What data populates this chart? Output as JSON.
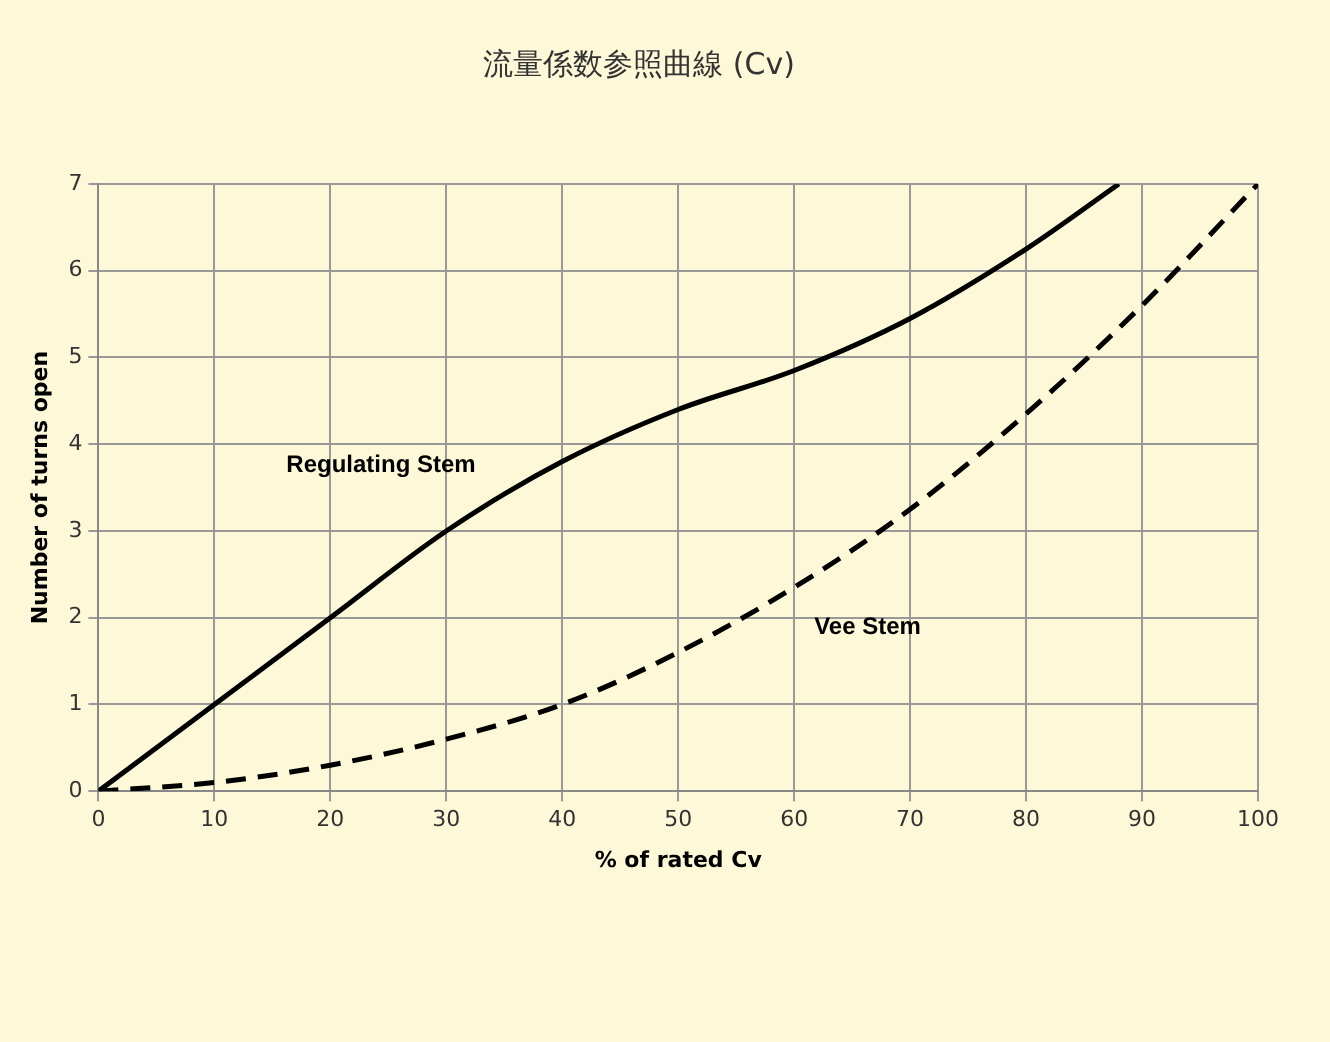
{
  "chart_data": {
    "type": "line",
    "title": "流量係数参照曲線 (Cv)",
    "xlabel": "% of rated Cv",
    "ylabel": "Number of turns open",
    "xlim": [
      0,
      100
    ],
    "xticks": [
      0,
      10,
      20,
      30,
      40,
      50,
      60,
      70,
      80,
      90,
      100
    ],
    "ylim": [
      0,
      7
    ],
    "yticks": [
      0,
      1,
      2,
      3,
      4,
      5,
      6,
      7
    ],
    "grid": true,
    "marker": "none",
    "series": [
      {
        "name": "Regulating Stem",
        "color": "#000000",
        "line_style": "solid",
        "x": [
          0,
          10,
          20,
          30,
          40,
          50,
          60,
          70,
          80,
          88
        ],
        "values": [
          0,
          1,
          2,
          3,
          3.8,
          4.4,
          4.85,
          5.45,
          6.25,
          7
        ]
      },
      {
        "name": "Vee Stem",
        "color": "#000000",
        "line_style": "dashed",
        "x": [
          0,
          10,
          20,
          30,
          40,
          50,
          60,
          70,
          80,
          90,
          100
        ],
        "values": [
          0,
          0.1,
          0.3,
          0.6,
          1,
          1.6,
          2.35,
          3.25,
          4.35,
          5.6,
          7
        ]
      }
    ]
  }
}
